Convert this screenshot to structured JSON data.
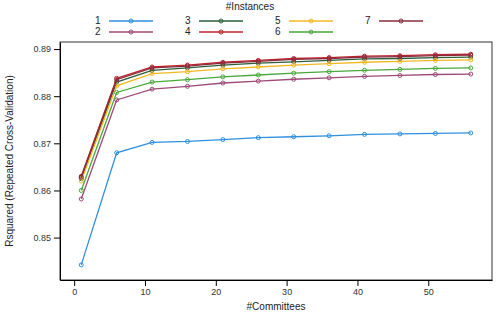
{
  "chart_data": {
    "type": "line",
    "x_label": "#Committees",
    "y_label": "Rsquared (Repeated Cross-Validation)",
    "legend_title": "#Instances",
    "marker": "circle",
    "grid": false,
    "legend": "top",
    "x": [
      1,
      6,
      11,
      16,
      21,
      26,
      31,
      36,
      41,
      46,
      51,
      56
    ],
    "xlim": [
      -2,
      59
    ],
    "xticks": [
      0,
      10,
      20,
      30,
      40,
      50
    ],
    "ylim": [
      0.841,
      0.8915
    ],
    "yticks": [
      0.85,
      0.86,
      0.87,
      0.88,
      0.89
    ],
    "series": [
      {
        "name": "1",
        "color": "#2f8fe0",
        "values": [
          0.8442,
          0.868,
          0.8702,
          0.8704,
          0.8708,
          0.8712,
          0.8714,
          0.8716,
          0.8719,
          0.872,
          0.8721,
          0.8722
        ]
      },
      {
        "name": "2",
        "color": "#9e4a78",
        "values": [
          0.8582,
          0.8792,
          0.8815,
          0.8821,
          0.8828,
          0.8832,
          0.8836,
          0.8839,
          0.8842,
          0.8844,
          0.8846,
          0.8847
        ]
      },
      {
        "name": "3",
        "color": "#2e5e3a",
        "values": [
          0.8625,
          0.883,
          0.8855,
          0.886,
          0.8866,
          0.887,
          0.8873,
          0.8876,
          0.8879,
          0.888,
          0.8882,
          0.8883
        ]
      },
      {
        "name": "4",
        "color": "#c0222e",
        "values": [
          0.863,
          0.8838,
          0.8862,
          0.8866,
          0.8872,
          0.8876,
          0.888,
          0.8882,
          0.8885,
          0.8886,
          0.8888,
          0.8889
        ]
      },
      {
        "name": "5",
        "color": "#f2b824",
        "values": [
          0.862,
          0.8822,
          0.8848,
          0.8852,
          0.8858,
          0.8862,
          0.8866,
          0.8869,
          0.8872,
          0.8874,
          0.8876,
          0.8877
        ]
      },
      {
        "name": "6",
        "color": "#49a83c",
        "values": [
          0.86,
          0.8808,
          0.883,
          0.8835,
          0.8841,
          0.8845,
          0.8849,
          0.8852,
          0.8855,
          0.8857,
          0.8859,
          0.886
        ]
      },
      {
        "name": "7",
        "color": "#8a2c3c",
        "values": [
          0.8628,
          0.8835,
          0.886,
          0.8864,
          0.887,
          0.8874,
          0.8878,
          0.888,
          0.8883,
          0.8884,
          0.8886,
          0.8887
        ]
      }
    ]
  }
}
